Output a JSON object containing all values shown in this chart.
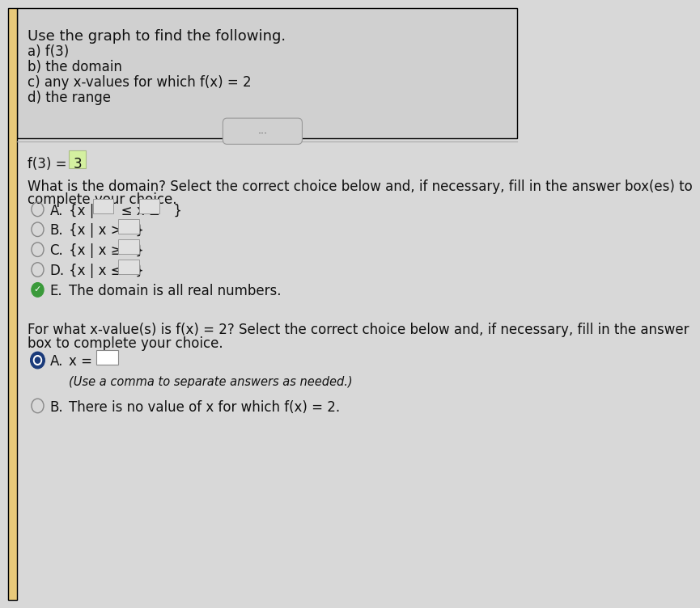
{
  "background_color": "#d8d8d8",
  "content_bg": "#e8e8e8",
  "left_accent_color": "#e8c97a",
  "title_text": "Use the graph to find the following.",
  "sub_items": [
    "a) f(3)",
    "b) the domain",
    "c) any x-values for which f(x) = 2",
    "d) the range"
  ],
  "divider_button_text": "...",
  "domain_question_line1": "What is the domain? Select the correct choice below and, if necessary, fill in the answer box(es) to",
  "domain_question_line2": "complete your choice.",
  "domain_choices": [
    {
      "label": "A.",
      "text": "{x |  ≤ x ≤ }"
    },
    {
      "label": "B.",
      "text": "{x | x > }"
    },
    {
      "label": "C.",
      "text": "{x | x ≥ }"
    },
    {
      "label": "D.",
      "text": "{x | x ≤ }"
    },
    {
      "label": "E.",
      "text": "The domain is all real numbers."
    }
  ],
  "domain_selected": 4,
  "fx_question_line1": "For what x-value(s) is f(x) = 2? Select the correct choice below and, if necessary, fill in the answer",
  "fx_question_line2": "box to complete your choice.",
  "fx_choices": [
    {
      "label": "A.",
      "main_text": "x =",
      "subtext": "(Use a comma to separate answers as needed.)"
    },
    {
      "label": "B.",
      "main_text": "There is no value of x for which f(x) = 2."
    }
  ],
  "fx_selected": 0,
  "font_size_title": 13,
  "font_size_body": 12,
  "font_size_small": 10.5
}
